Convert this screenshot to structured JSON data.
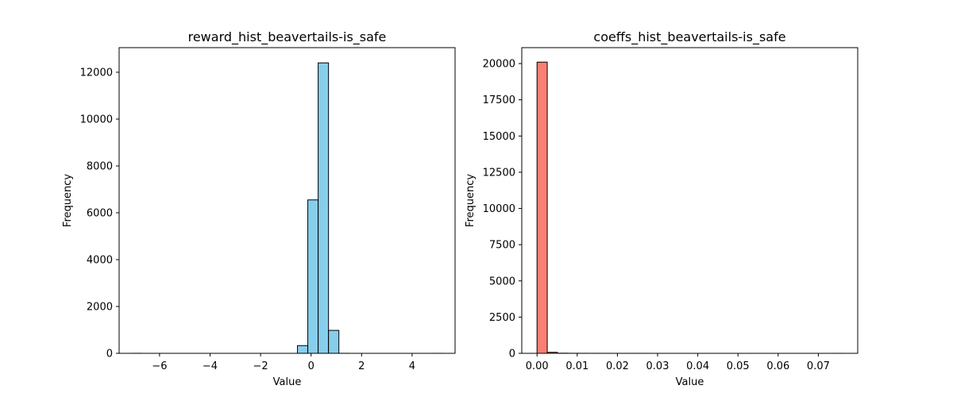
{
  "chart_data": [
    {
      "type": "bar",
      "subtype": "histogram",
      "title": "reward_hist_beavertails-is_safe",
      "xlabel": "Value",
      "ylabel": "Frequency",
      "color": "#87ceeb",
      "edge_color": "#000000",
      "xlim": [
        -7.6,
        5.7
      ],
      "ylim": [
        0,
        13050
      ],
      "xticks": [
        -6,
        -4,
        -2,
        0,
        2,
        4
      ],
      "yticks": [
        0,
        2000,
        4000,
        6000,
        8000,
        10000,
        12000
      ],
      "bin_start": -7.1,
      "bin_width": 0.41,
      "values": [
        2,
        0,
        0,
        0,
        0,
        0,
        0,
        0,
        0,
        0,
        0,
        0,
        0,
        0,
        0,
        0,
        330,
        6550,
        12400,
        980,
        2,
        0,
        0,
        0,
        0,
        0,
        0,
        0,
        0,
        1
      ],
      "grid": false,
      "legend": "none"
    },
    {
      "type": "bar",
      "subtype": "histogram",
      "title": "coeffs_hist_beavertails-is_safe",
      "xlabel": "Value",
      "ylabel": "Frequency",
      "color": "#fa8072",
      "edge_color": "#000000",
      "xlim": [
        -0.0038,
        0.0798
      ],
      "ylim": [
        0,
        21100
      ],
      "xticks": [
        0,
        0.01,
        0.02,
        0.03,
        0.04,
        0.05,
        0.06,
        0.07
      ],
      "xtick_labels": [
        "0.00",
        "0.01",
        "0.02",
        "0.03",
        "0.04",
        "0.05",
        "0.06",
        "0.07"
      ],
      "yticks": [
        0,
        2500,
        5000,
        7500,
        10000,
        12500,
        15000,
        17500,
        20000
      ],
      "bin_start": 0,
      "bin_width": 0.00254,
      "values": [
        20100,
        70,
        10,
        5,
        3,
        2,
        2,
        1,
        1,
        1,
        1,
        0,
        0,
        0,
        0,
        0,
        0,
        0,
        0,
        0,
        0,
        0,
        0,
        0,
        0,
        0,
        0,
        0,
        0,
        1
      ],
      "grid": false,
      "legend": "none"
    }
  ]
}
